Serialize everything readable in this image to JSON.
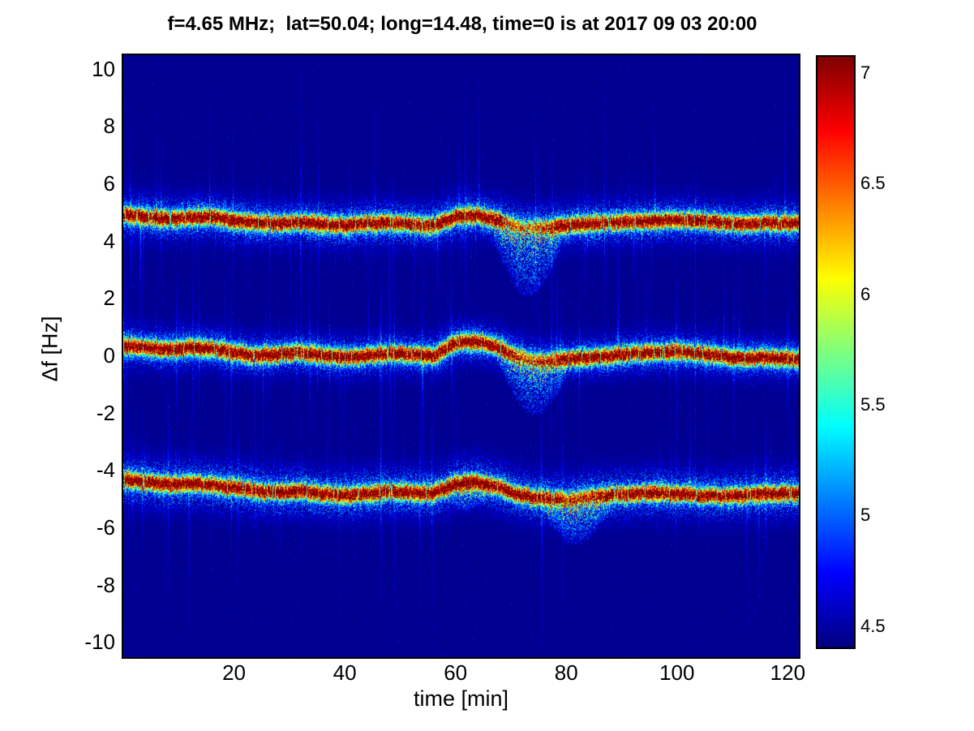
{
  "chart_data": {
    "type": "heatmap",
    "title": "f=4.65 MHz;  lat=50.04; long=14.48, time=0 is at 2017 09 03 20:00",
    "xlabel": "time [min]",
    "ylabel": "Δf [Hz]",
    "xlim": [
      0,
      122
    ],
    "ylim": [
      -10.5,
      10.5
    ],
    "x_ticks": [
      20,
      40,
      60,
      80,
      100,
      120
    ],
    "y_ticks": [
      -10,
      -8,
      -6,
      -4,
      -2,
      0,
      2,
      4,
      6,
      8,
      10
    ],
    "colormap": "jet",
    "colorbar": {
      "min": 4.4,
      "max": 7.07,
      "ticks": [
        4.5,
        5,
        5.5,
        6,
        6.5,
        7
      ]
    },
    "background_value": 4.45,
    "t_samples": [
      0,
      4,
      8,
      12,
      16,
      20,
      24,
      28,
      32,
      36,
      40,
      44,
      48,
      52,
      56,
      60,
      64,
      68,
      72,
      76,
      80,
      84,
      88,
      92,
      96,
      100,
      104,
      108,
      112,
      116,
      120
    ],
    "bands": [
      {
        "name": "upper-doppler-trace",
        "approx_center_hz": 4.7,
        "peak_value": 7.1,
        "core_sigma_hz": 0.18,
        "fringe_sigma_hz": 0.5,
        "centers": [
          4.95,
          4.85,
          4.78,
          4.82,
          4.86,
          4.74,
          4.66,
          4.62,
          4.68,
          4.6,
          4.55,
          4.62,
          4.66,
          4.6,
          4.56,
          4.85,
          4.92,
          4.72,
          4.5,
          4.48,
          4.56,
          4.62,
          4.66,
          4.7,
          4.72,
          4.76,
          4.72,
          4.66,
          4.6,
          4.66,
          4.62
        ],
        "events": [
          {
            "t0": 67,
            "t1": 79,
            "tail_depth_hz": 2.4,
            "weaken": 0.55
          }
        ]
      },
      {
        "name": "middle-doppler-trace",
        "approx_center_hz": 0.0,
        "peak_value": 7.1,
        "core_sigma_hz": 0.18,
        "fringe_sigma_hz": 0.45,
        "centers": [
          0.35,
          0.3,
          0.22,
          0.3,
          0.26,
          0.12,
          0.02,
          0.06,
          0.12,
          0.02,
          -0.05,
          0.0,
          0.1,
          0.06,
          0.0,
          0.45,
          0.5,
          0.28,
          -0.08,
          -0.18,
          -0.1,
          -0.05,
          0.0,
          0.1,
          0.12,
          0.15,
          0.1,
          0.0,
          -0.08,
          -0.05,
          -0.1
        ],
        "events": [
          {
            "t0": 68,
            "t1": 80,
            "tail_depth_hz": 1.9,
            "weaken": 0.65
          }
        ]
      },
      {
        "name": "lower-doppler-trace",
        "approx_center_hz": -4.7,
        "peak_value": 7.1,
        "core_sigma_hz": 0.18,
        "fringe_sigma_hz": 0.55,
        "centers": [
          -4.3,
          -4.4,
          -4.48,
          -4.44,
          -4.5,
          -4.6,
          -4.7,
          -4.76,
          -4.7,
          -4.8,
          -4.86,
          -4.8,
          -4.72,
          -4.76,
          -4.8,
          -4.45,
          -4.4,
          -4.6,
          -4.88,
          -4.95,
          -5.0,
          -4.9,
          -4.85,
          -4.8,
          -4.76,
          -4.8,
          -4.86,
          -4.9,
          -4.86,
          -4.8,
          -4.8
        ],
        "events": [
          {
            "t0": 76,
            "t1": 88,
            "tail_depth_hz": 1.6,
            "weaken": 0.7
          },
          {
            "t0": 58,
            "t1": 66,
            "tail_depth_hz": 1.0,
            "weaken": 1.0
          }
        ]
      }
    ],
    "streaks": {
      "count": 270,
      "seed": 20170903,
      "max_len_hz": 2.5
    }
  }
}
